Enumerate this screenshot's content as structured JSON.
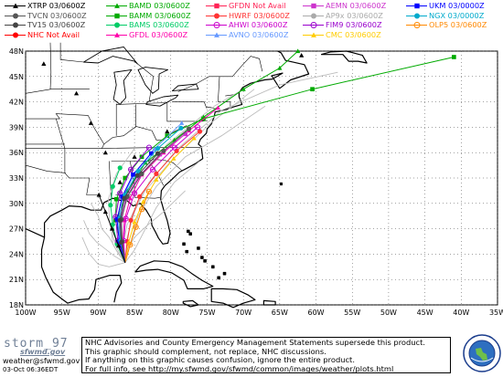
{
  "legend": [
    {
      "label": "XTRP 03/0600Z",
      "color": "#000000",
      "marker": "triangle"
    },
    {
      "label": "TVCN 03/0600Z",
      "color": "#555555",
      "marker": "circle"
    },
    {
      "label": "TV15 03/0600Z",
      "color": "#444444",
      "marker": "circle"
    },
    {
      "label": "NHC Not Avail",
      "color": "#ff0000",
      "marker": "circle"
    },
    {
      "label": "BAMD 03/0600Z",
      "color": "#00aa00",
      "marker": "triangle"
    },
    {
      "label": "BAMM 03/0600Z",
      "color": "#00aa00",
      "marker": "square"
    },
    {
      "label": "BAMS 03/0600Z",
      "color": "#00cc66",
      "marker": "circle"
    },
    {
      "label": "GFDL 03/0600Z",
      "color": "#ff00aa",
      "marker": "triangle"
    },
    {
      "label": "GFDN Not Avail",
      "color": "#ff2255",
      "marker": "square"
    },
    {
      "label": "HWRF 03/0600Z",
      "color": "#ff3333",
      "marker": "circle"
    },
    {
      "label": "AHWI 03/0600Z",
      "color": "#cc00cc",
      "marker": "circle-x"
    },
    {
      "label": "AVNO 03/0600Z",
      "color": "#6699ff",
      "marker": "triangle"
    },
    {
      "label": "AEMN 03/0600Z",
      "color": "#cc33cc",
      "marker": "square"
    },
    {
      "label": "AP9x 03/0600Z",
      "color": "#aaaaaa",
      "marker": "circle"
    },
    {
      "label": "FIM9 03/0600Z",
      "color": "#9900cc",
      "marker": "circle-x"
    },
    {
      "label": "CMC 03/0600Z",
      "color": "#ffcc00",
      "marker": "triangle"
    },
    {
      "label": "UKM 03/0000Z",
      "color": "#0000ff",
      "marker": "square"
    },
    {
      "label": "NGX 03/0000Z",
      "color": "#00aacc",
      "marker": "circle"
    },
    {
      "label": "OLP5 03/0600Z",
      "color": "#ff8800",
      "marker": "circle-x"
    }
  ],
  "map": {
    "lon_labels": [
      "100W",
      "95W",
      "90W",
      "85W",
      "80W",
      "75W",
      "70W",
      "65W",
      "60W",
      "55W",
      "50W",
      "45W",
      "40W",
      "35W"
    ],
    "lat_labels": [
      "48N",
      "45N",
      "42N",
      "39N",
      "36N",
      "33N",
      "30N",
      "27N",
      "24N",
      "21N",
      "18N"
    ],
    "tracks": [
      {
        "name": "BAMM",
        "color": "#00aa00",
        "marker": "square",
        "points": [
          [
            -86.3,
            23.0
          ],
          [
            -87.0,
            25.5
          ],
          [
            -87.6,
            28.0
          ],
          [
            -87.5,
            30.5
          ],
          [
            -86.3,
            33.0
          ],
          [
            -84.0,
            35.5
          ],
          [
            -80.5,
            38.0
          ],
          [
            -75.5,
            40.0
          ],
          [
            -60.5,
            43.5
          ],
          [
            -41.0,
            47.3
          ]
        ]
      },
      {
        "name": "BAMD",
        "color": "#00aa00",
        "marker": "triangle",
        "points": [
          [
            -86.3,
            23.0
          ],
          [
            -87.0,
            25.8
          ],
          [
            -87.2,
            28.6
          ],
          [
            -86.0,
            31.5
          ],
          [
            -83.5,
            34.8
          ],
          [
            -79.5,
            37.5
          ],
          [
            -75.5,
            40.2
          ],
          [
            -70.0,
            43.5
          ],
          [
            -65.0,
            46.0
          ],
          [
            -62.5,
            48.0
          ]
        ]
      },
      {
        "name": "BAMS",
        "color": "#00cc66",
        "marker": "circle",
        "points": [
          [
            -86.3,
            23.0
          ],
          [
            -87.4,
            25.2
          ],
          [
            -88.0,
            27.5
          ],
          [
            -88.3,
            29.8
          ],
          [
            -88.0,
            32.0
          ],
          [
            -87.0,
            34.2
          ]
        ]
      },
      {
        "name": "GFDL",
        "color": "#ff00aa",
        "marker": "triangle",
        "points": [
          [
            -86.3,
            23.0
          ],
          [
            -86.6,
            25.5
          ],
          [
            -86.4,
            28.0
          ],
          [
            -85.6,
            30.6
          ],
          [
            -84.0,
            33.4
          ],
          [
            -81.0,
            36.0
          ],
          [
            -77.5,
            38.6
          ],
          [
            -73.5,
            41.3
          ]
        ]
      },
      {
        "name": "HWRF",
        "color": "#ff3333",
        "marker": "circle",
        "points": [
          [
            -86.3,
            23.0
          ],
          [
            -86.0,
            25.5
          ],
          [
            -85.5,
            28.0
          ],
          [
            -84.3,
            30.8
          ],
          [
            -82.0,
            33.5
          ],
          [
            -79.2,
            36.2
          ],
          [
            -76.0,
            38.5
          ]
        ]
      },
      {
        "name": "AHWI",
        "color": "#cc00cc",
        "marker": "circle-x",
        "points": [
          [
            -86.3,
            23.0
          ],
          [
            -86.5,
            25.6
          ],
          [
            -86.2,
            28.2
          ],
          [
            -85.0,
            31.2
          ],
          [
            -82.5,
            34.0
          ],
          [
            -79.5,
            36.6
          ],
          [
            -76.3,
            39.0
          ]
        ]
      },
      {
        "name": "AVNO",
        "color": "#6699ff",
        "marker": "triangle",
        "points": [
          [
            -86.3,
            23.0
          ],
          [
            -87.0,
            25.4
          ],
          [
            -87.2,
            28.0
          ],
          [
            -86.6,
            30.8
          ],
          [
            -85.0,
            33.5
          ],
          [
            -82.3,
            36.4
          ],
          [
            -78.5,
            39.5
          ]
        ]
      },
      {
        "name": "AEMN",
        "color": "#cc33cc",
        "marker": "square",
        "points": [
          [
            -86.3,
            23.0
          ],
          [
            -86.8,
            25.4
          ],
          [
            -86.9,
            28.0
          ],
          [
            -86.2,
            30.6
          ],
          [
            -84.4,
            33.2
          ],
          [
            -81.5,
            35.8
          ],
          [
            -78.0,
            38.2
          ]
        ]
      },
      {
        "name": "FIM9",
        "color": "#9900cc",
        "marker": "circle-x",
        "points": [
          [
            -86.3,
            23.0
          ],
          [
            -87.3,
            25.6
          ],
          [
            -87.6,
            28.4
          ],
          [
            -87.0,
            31.2
          ],
          [
            -85.5,
            34.0
          ],
          [
            -83.0,
            36.6
          ]
        ]
      },
      {
        "name": "CMC",
        "color": "#ffcc00",
        "marker": "triangle",
        "points": [
          [
            -86.3,
            23.0
          ],
          [
            -85.8,
            25.4
          ],
          [
            -85.0,
            27.8
          ],
          [
            -83.8,
            30.2
          ],
          [
            -82.0,
            32.8
          ],
          [
            -79.6,
            35.3
          ],
          [
            -76.8,
            37.7
          ]
        ]
      },
      {
        "name": "UKM",
        "color": "#0000ff",
        "marker": "square",
        "points": [
          [
            -86.3,
            23.0
          ],
          [
            -87.1,
            25.5
          ],
          [
            -87.4,
            28.1
          ],
          [
            -86.7,
            30.8
          ],
          [
            -85.2,
            33.4
          ],
          [
            -82.7,
            35.9
          ]
        ]
      },
      {
        "name": "NGX",
        "color": "#00aacc",
        "marker": "circle",
        "points": [
          [
            -86.3,
            23.0
          ],
          [
            -86.9,
            25.6
          ],
          [
            -87.0,
            28.3
          ],
          [
            -86.3,
            31.0
          ],
          [
            -84.5,
            33.8
          ],
          [
            -81.8,
            36.5
          ],
          [
            -78.6,
            38.9
          ]
        ]
      },
      {
        "name": "OLP5",
        "color": "#ff8800",
        "marker": "circle-x",
        "points": [
          [
            -86.3,
            23.0
          ],
          [
            -85.6,
            25.1
          ],
          [
            -84.8,
            27.2
          ],
          [
            -84.0,
            29.3
          ],
          [
            -83.0,
            31.4
          ]
        ]
      },
      {
        "name": "TVCN",
        "color": "#555555",
        "marker": "circle",
        "points": [
          [
            -86.3,
            23.0
          ],
          [
            -86.7,
            25.5
          ],
          [
            -86.8,
            28.1
          ],
          [
            -86.0,
            30.8
          ],
          [
            -84.0,
            33.5
          ],
          [
            -81.0,
            36.2
          ],
          [
            -77.5,
            38.8
          ]
        ]
      },
      {
        "name": "TV15",
        "color": "#444444",
        "marker": "circle",
        "points": [
          [
            -86.3,
            23.0
          ],
          [
            -86.8,
            25.4
          ],
          [
            -87.0,
            28.0
          ],
          [
            -86.4,
            30.6
          ],
          [
            -84.6,
            33.3
          ],
          [
            -81.8,
            35.9
          ]
        ]
      },
      {
        "name": "XTRP",
        "color": "#000000",
        "marker": "triangle",
        "points": [
          [
            -86.3,
            23.0
          ],
          [
            -87.2,
            25.0
          ],
          [
            -88.1,
            27.0
          ],
          [
            -89.0,
            29.0
          ],
          [
            -89.9,
            31.0
          ]
        ]
      }
    ],
    "ensemble": [
      [
        [
          -86.3,
          23.0
        ],
        [
          -87.5,
          24.5
        ],
        [
          -88.5,
          26.0
        ],
        [
          -89.5,
          27.0
        ],
        [
          -90.0,
          28.5
        ],
        [
          -91.0,
          30.0
        ]
      ],
      [
        [
          -86.3,
          23.0
        ],
        [
          -87.8,
          23.8
        ],
        [
          -89.0,
          24.6
        ],
        [
          -90.2,
          25.4
        ],
        [
          -91.2,
          26.4
        ],
        [
          -92.0,
          28.0
        ]
      ],
      [
        [
          -86.3,
          23.0
        ],
        [
          -88.5,
          22.5
        ],
        [
          -90.0,
          22.8
        ],
        [
          -91.2,
          24.0
        ],
        [
          -92.2,
          26.0
        ]
      ],
      [
        [
          -86.3,
          23.0
        ],
        [
          -85.0,
          24.5
        ],
        [
          -83.5,
          27.0
        ],
        [
          -82.0,
          29.5
        ],
        [
          -79.5,
          32.5
        ],
        [
          -76.0,
          35.0
        ]
      ],
      [
        [
          -86.3,
          23.0
        ],
        [
          -85.5,
          25.5
        ],
        [
          -84.5,
          28.5
        ],
        [
          -82.0,
          32.0
        ],
        [
          -78.0,
          35.5
        ],
        [
          -73.0,
          38.0
        ],
        [
          -67.0,
          41.5
        ]
      ],
      [
        [
          -86.3,
          23.0
        ],
        [
          -86.0,
          26.0
        ],
        [
          -85.0,
          29.0
        ],
        [
          -83.0,
          32.5
        ],
        [
          -79.0,
          36.5
        ],
        [
          -73.0,
          41.0
        ],
        [
          -65.0,
          44.0
        ],
        [
          -57.0,
          45.5
        ]
      ],
      [
        [
          -86.3,
          23.0
        ],
        [
          -87.0,
          26.0
        ],
        [
          -86.5,
          29.5
        ],
        [
          -84.5,
          33.0
        ],
        [
          -80.5,
          37.0
        ],
        [
          -74.0,
          41.5
        ],
        [
          -66.0,
          45.5
        ]
      ],
      [
        [
          -86.3,
          23.0
        ],
        [
          -86.6,
          25.0
        ],
        [
          -86.0,
          27.5
        ],
        [
          -84.0,
          31.0
        ],
        [
          -80.0,
          35.0
        ],
        [
          -74.5,
          39.5
        ],
        [
          -68.5,
          43.5
        ]
      ],
      [
        [
          -86.3,
          23.0
        ],
        [
          -87.2,
          24.0
        ],
        [
          -88.0,
          25.2
        ],
        [
          -88.2,
          27.0
        ],
        [
          -87.5,
          29.5
        ],
        [
          -86.5,
          32.5
        ]
      ],
      [
        [
          -86.3,
          23.0
        ],
        [
          -87.6,
          25.0
        ],
        [
          -88.4,
          27.5
        ],
        [
          -88.6,
          30.5
        ],
        [
          -87.5,
          33.5
        ],
        [
          -85.0,
          36.5
        ]
      ],
      [
        [
          -86.3,
          23.0
        ],
        [
          -86.0,
          24.5
        ],
        [
          -85.0,
          26.0
        ],
        [
          -83.5,
          27.2
        ],
        [
          -81.0,
          29.0
        ],
        [
          -78.0,
          31.5
        ]
      ]
    ]
  },
  "footer": {
    "brand_title": "storm_97",
    "brand_sub": "sfwmd.gov",
    "email": "weather@sfwmd.gov",
    "timestamp": "03-Oct 06:36EDT",
    "lines": [
      "NHC Advisories and County Emergency Management Statements supersede this product.",
      "This graphic should complement, not replace, NHC discussions.",
      "If anything on this graphic causes confusion, ignore the entire product.",
      "For full info, see  http://my.sfwmd.gov/sfwmd/common/images/weather/plots.html"
    ]
  }
}
